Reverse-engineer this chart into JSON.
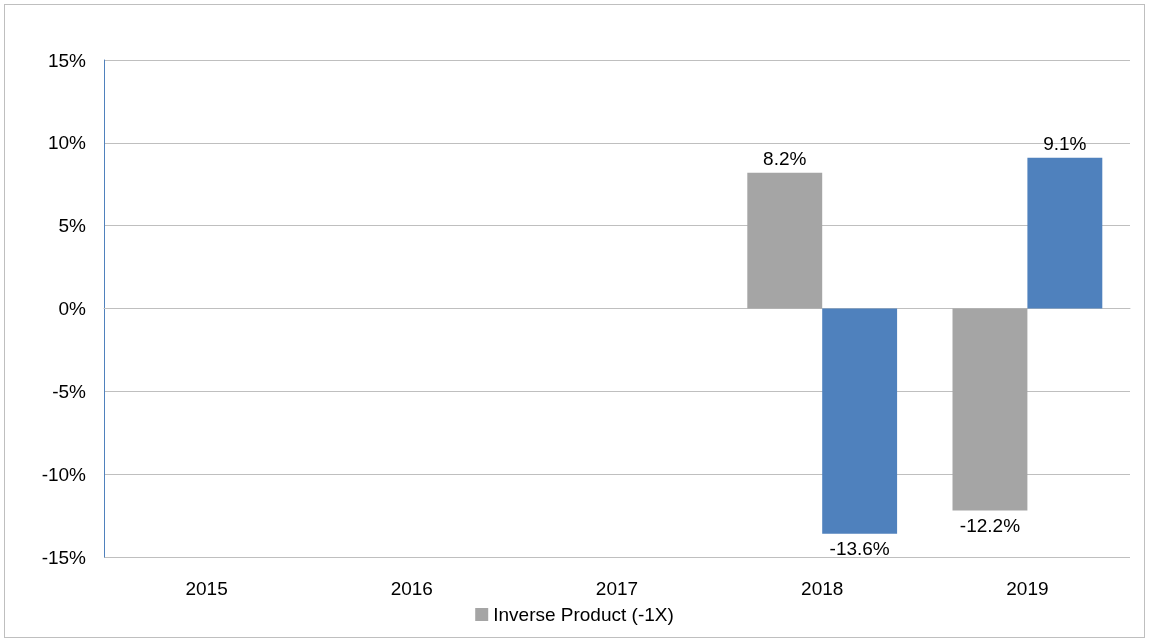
{
  "chart_data": {
    "type": "bar",
    "categories": [
      "2015",
      "2016",
      "2017",
      "2018",
      "2019"
    ],
    "series": [
      {
        "name": "Inverse Product (-1X)",
        "color": "#a5a5a5",
        "values": [
          null,
          null,
          null,
          8.2,
          -12.2
        ],
        "value_labels": [
          null,
          null,
          null,
          "8.2%",
          "-12.2%"
        ]
      },
      {
        "color": "#4f81bd",
        "values": [
          null,
          null,
          null,
          -13.6,
          9.1
        ],
        "value_labels": [
          null,
          null,
          null,
          "-13.6%",
          "9.1%"
        ]
      }
    ],
    "ylim": [
      -15,
      15
    ],
    "yticks": [
      {
        "value": -15,
        "label": "-15%"
      },
      {
        "value": -10,
        "label": "-10%"
      },
      {
        "value": -5,
        "label": "-5%"
      },
      {
        "value": 0,
        "label": "0%"
      },
      {
        "value": 5,
        "label": "5%"
      },
      {
        "value": 10,
        "label": "10%"
      },
      {
        "value": 15,
        "label": "15%"
      }
    ],
    "grid": "y",
    "legend": "bottom"
  }
}
